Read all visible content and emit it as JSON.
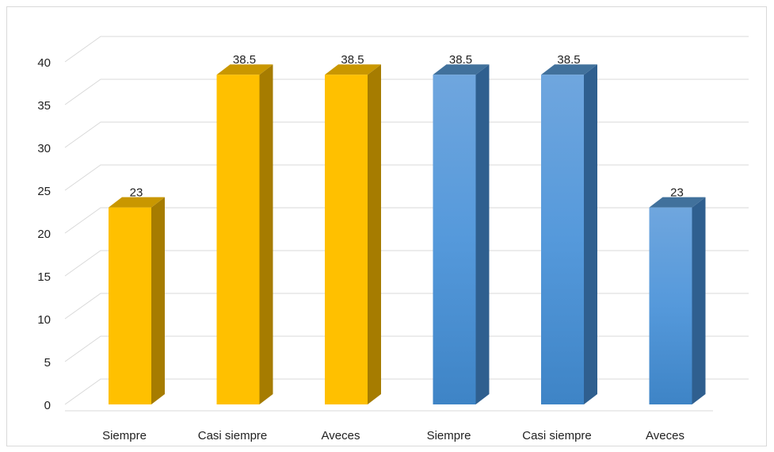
{
  "chart_data": {
    "type": "bar",
    "style": "3d-column",
    "categories": [
      "Siempre",
      "Casi siempre",
      "Aveces",
      "Siempre",
      "Casi siempre",
      "Aveces"
    ],
    "values": [
      23,
      38.5,
      38.5,
      38.5,
      38.5,
      23
    ],
    "data_labels": [
      "23",
      "38.5",
      "38.5",
      "38.5",
      "38.5",
      "23"
    ],
    "bar_colors": [
      "#FFC000",
      "#FFC000",
      "#FFC000",
      "#5B9BD5",
      "#5B9BD5",
      "#5B9BD5"
    ],
    "ylim": [
      0,
      40
    ],
    "yticks": [
      0,
      5,
      10,
      15,
      20,
      25,
      30,
      35,
      40
    ],
    "grid": true,
    "legend": "none",
    "title": "",
    "xlabel": "",
    "ylabel": ""
  },
  "colors": {
    "gold_front": "#FFC000",
    "gold_side": "#A67C00",
    "gold_top": "#C99700",
    "blue_front": "#5B9BD5",
    "blue_side": "#2F5F8F",
    "blue_top": "#41719C",
    "grid": "#d9d9d9",
    "frame": "#d9d9d9"
  }
}
